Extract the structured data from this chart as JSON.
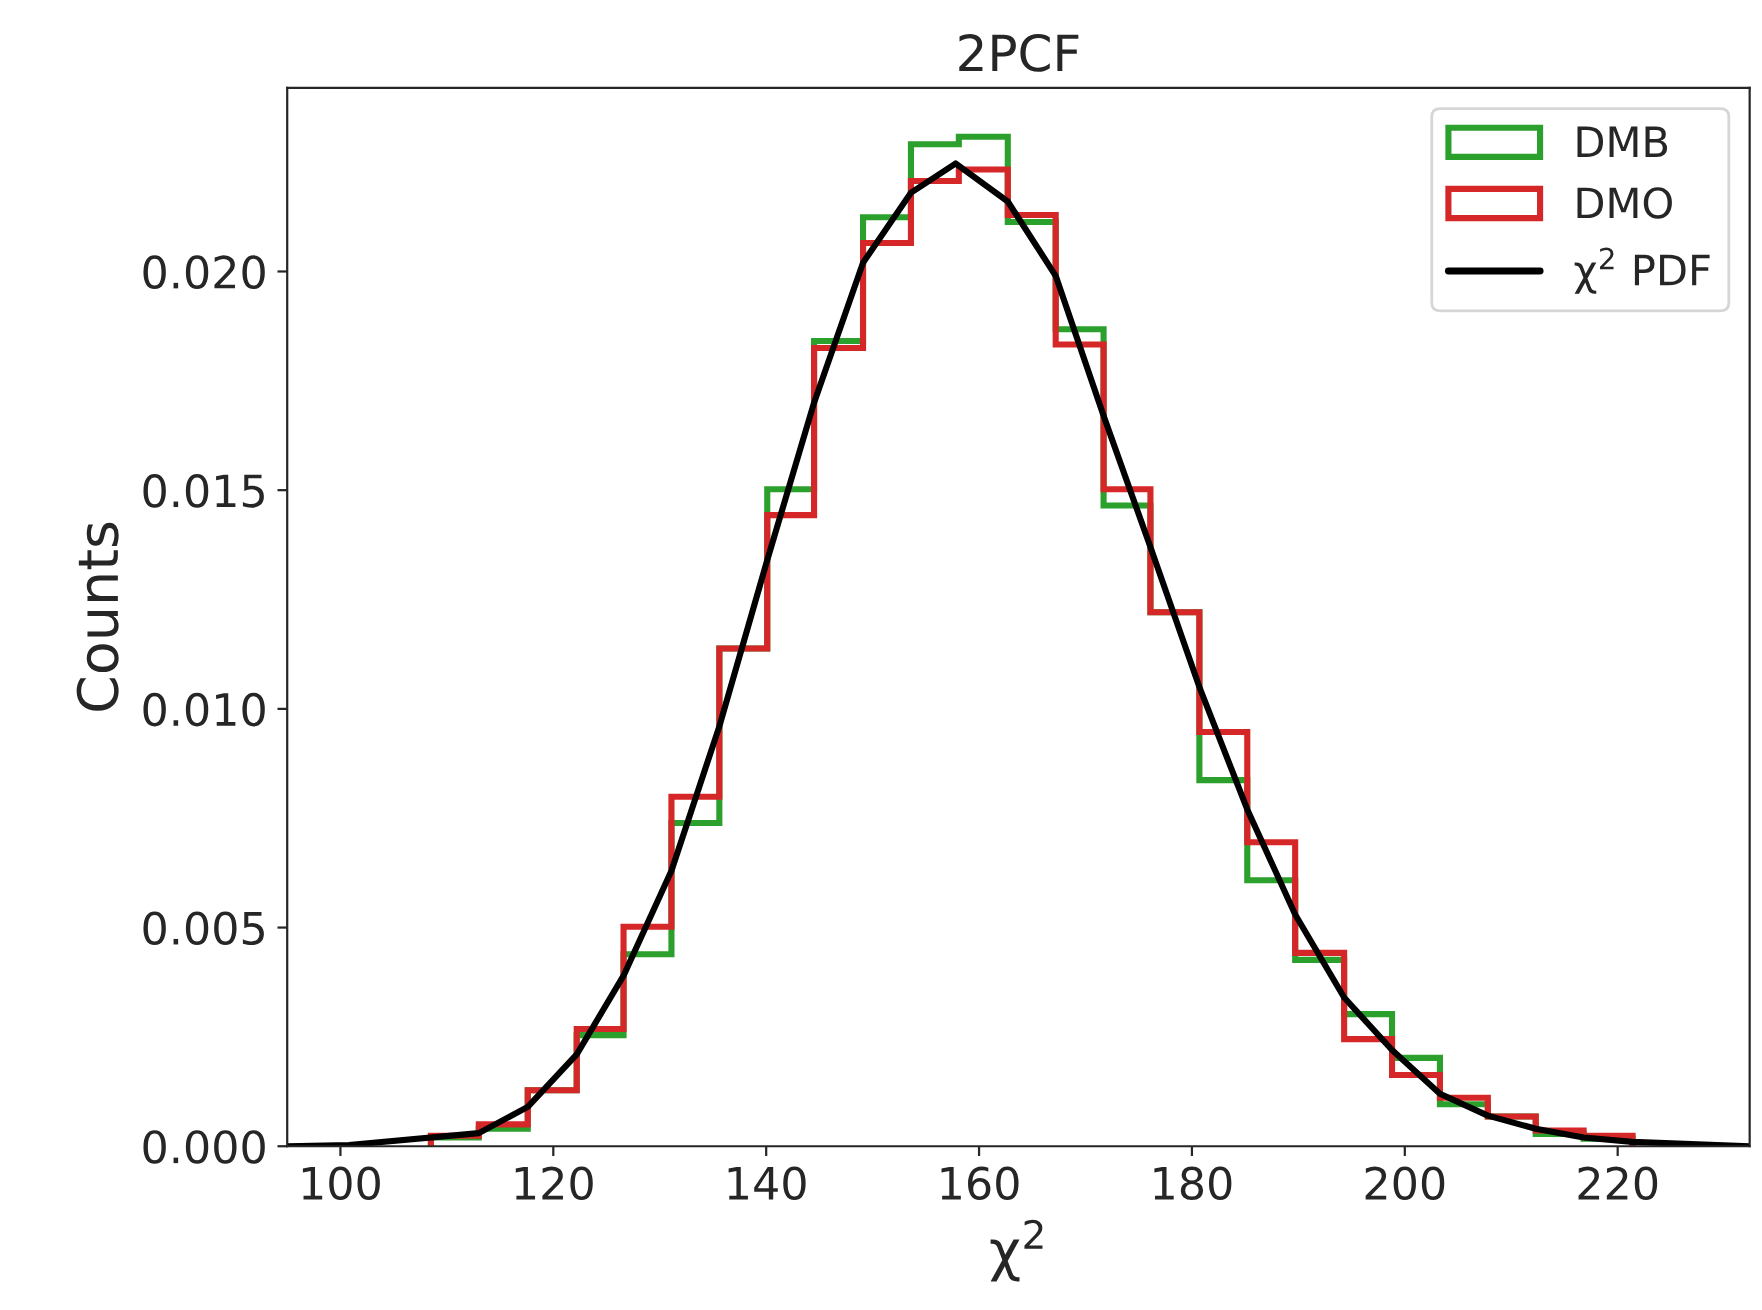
{
  "chart_data": {
    "type": "histogram",
    "title": "2PCF",
    "xlabel": "χ$^{2}$",
    "ylabel": "Counts",
    "bins": [
      108.5,
      113.0,
      117.6,
      122.2,
      126.6,
      131.1,
      135.6,
      140.1,
      144.5,
      149.1,
      153.6,
      158.1,
      162.7,
      167.2,
      171.7,
      176.1,
      180.7,
      185.2,
      189.7,
      194.3,
      198.8,
      203.3,
      207.8,
      212.3,
      216.8,
      221.4
    ],
    "series": [
      {
        "name": "DMB",
        "color": "#2ca02c",
        "values": [
          0.0002,
          0.0004,
          0.00128,
          0.00254,
          0.00439,
          0.00739,
          0.01138,
          0.01502,
          0.01841,
          0.02124,
          0.02291,
          0.02308,
          0.02113,
          0.01868,
          0.01465,
          0.01221,
          0.00837,
          0.00608,
          0.00426,
          0.00302,
          0.00202,
          0.00096,
          0.00068,
          0.00028,
          0.00017
        ]
      },
      {
        "name": "DMO",
        "color": "#d62728",
        "values": [
          0.00024,
          0.0005,
          0.00128,
          0.00268,
          0.00502,
          0.00799,
          0.01138,
          0.01443,
          0.01825,
          0.02065,
          0.02207,
          0.02233,
          0.02129,
          0.01833,
          0.01502,
          0.01221,
          0.00947,
          0.00695,
          0.00442,
          0.00245,
          0.00163,
          0.00111,
          0.00068,
          0.00036,
          0.00024
        ]
      },
      {
        "name": "χ$^{2}$ PDF",
        "type": "line",
        "color": "#000000",
        "x": [
          95,
          100.8,
          113.0,
          117.6,
          122.2,
          126.6,
          131.1,
          135.6,
          140.1,
          144.5,
          149.1,
          153.6,
          157.8,
          162.7,
          167.2,
          171.7,
          176.1,
          180.7,
          185.2,
          189.7,
          194.3,
          198.8,
          203.3,
          207.8,
          212.3,
          216.8,
          221.4,
          232.4
        ],
        "values": [
          0,
          3e-05,
          0.0003,
          0.0009,
          0.0021,
          0.0039,
          0.0063,
          0.0096,
          0.0134,
          0.017,
          0.0202,
          0.0218,
          0.02247,
          0.0216,
          0.0199,
          0.0167,
          0.0137,
          0.0105,
          0.0077,
          0.0053,
          0.0034,
          0.0022,
          0.0012,
          0.0007,
          0.0004,
          0.0002,
          0.0001,
          0
        ]
      }
    ],
    "xlim": [
      95,
      232.4
    ],
    "xticks": [
      100,
      120,
      140,
      160,
      180,
      200,
      220
    ],
    "ylim": [
      0,
      0.0242
    ],
    "yticks": [
      {
        "value": 0,
        "label": "0.000"
      },
      {
        "value": 0.005,
        "label": "0.005"
      },
      {
        "value": 0.01,
        "label": "0.010"
      },
      {
        "value": 0.015,
        "label": "0.015"
      },
      {
        "value": 0.02,
        "label": "0.020"
      }
    ],
    "legend": "top right",
    "grid": false
  }
}
